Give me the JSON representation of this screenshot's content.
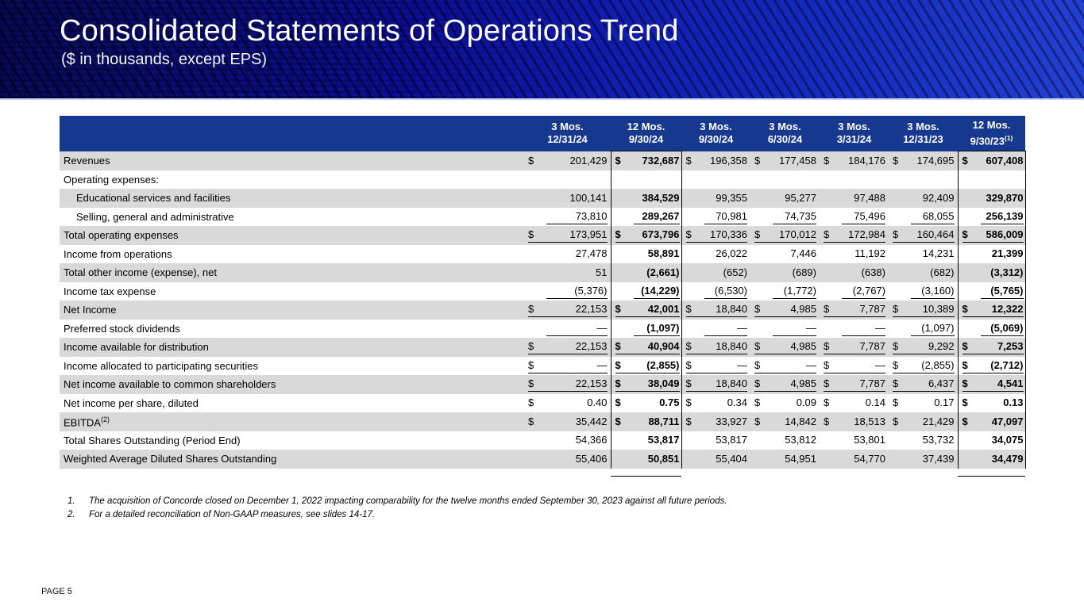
{
  "slide": {
    "title": "Consolidated Statements of Operations Trend",
    "subtitle": "($ in thousands, except EPS)",
    "page_label": "PAGE 5"
  },
  "colors": {
    "banner_blue_dark": "#05054a",
    "banner_blue_bright": "#2240d0",
    "table_header_blue": "#17388f",
    "row_stripe_gray": "#d9d9d9",
    "banner_bottom_line": "#c7d3ee"
  },
  "table": {
    "columns": [
      {
        "line1": "3 Mos.",
        "line2": "12/31/24",
        "sup": "",
        "boxed": false
      },
      {
        "line1": "12 Mos.",
        "line2": "9/30/24",
        "sup": "",
        "boxed": true
      },
      {
        "line1": "3 Mos.",
        "line2": "9/30/24",
        "sup": "",
        "boxed": false
      },
      {
        "line1": "3 Mos.",
        "line2": "6/30/24",
        "sup": "",
        "boxed": false
      },
      {
        "line1": "3 Mos.",
        "line2": "3/31/24",
        "sup": "",
        "boxed": false
      },
      {
        "line1": "3 Mos.",
        "line2": "12/31/23",
        "sup": "",
        "boxed": false
      },
      {
        "line1": "12 Mos.",
        "line2": "9/30/23",
        "sup": "(1)",
        "boxed": true
      }
    ],
    "rows": [
      {
        "label": "Revenues",
        "sup": "",
        "indent": false,
        "dollar": true,
        "underline": false,
        "values": [
          "201,429",
          "732,687",
          "196,358",
          "177,458",
          "184,176",
          "174,695",
          "607,408"
        ]
      },
      {
        "label": "Operating expenses:",
        "sup": "",
        "indent": false,
        "dollar": false,
        "underline": false,
        "values": [
          "",
          "",
          "",
          "",
          "",
          "",
          ""
        ]
      },
      {
        "label": "Educational services and facilities",
        "sup": "",
        "indent": true,
        "dollar": false,
        "underline": false,
        "values": [
          "100,141",
          "384,529",
          "99,355",
          "95,277",
          "97,488",
          "92,409",
          "329,870"
        ]
      },
      {
        "label": "Selling, general and administrative",
        "sup": "",
        "indent": true,
        "dollar": false,
        "underline": true,
        "values": [
          "73,810",
          "289,267",
          "70,981",
          "74,735",
          "75,496",
          "68,055",
          "256,139"
        ]
      },
      {
        "label": "Total operating expenses",
        "sup": "",
        "indent": false,
        "dollar": true,
        "underline": true,
        "values": [
          "173,951",
          "673,796",
          "170,336",
          "170,012",
          "172,984",
          "160,464",
          "586,009"
        ]
      },
      {
        "label": "Income from operations",
        "sup": "",
        "indent": false,
        "dollar": false,
        "underline": false,
        "values": [
          "27,478",
          "58,891",
          "26,022",
          "7,446",
          "11,192",
          "14,231",
          "21,399"
        ]
      },
      {
        "label": "Total other income (expense), net",
        "sup": "",
        "indent": false,
        "dollar": false,
        "underline": false,
        "values": [
          "51",
          "(2,661)",
          "(652)",
          "(689)",
          "(638)",
          "(682)",
          "(3,312)"
        ]
      },
      {
        "label": "Income tax expense",
        "sup": "",
        "indent": false,
        "dollar": false,
        "underline": true,
        "values": [
          "(5,376)",
          "(14,229)",
          "(6,530)",
          "(1,772)",
          "(2,767)",
          "(3,160)",
          "(5,765)"
        ]
      },
      {
        "label": "Net Income",
        "sup": "",
        "indent": false,
        "dollar": true,
        "underline": true,
        "values": [
          "22,153",
          "42,001",
          "18,840",
          "4,985",
          "7,787",
          "10,389",
          "12,322"
        ]
      },
      {
        "label": "Preferred stock dividends",
        "sup": "",
        "indent": false,
        "dollar": false,
        "underline": true,
        "values": [
          "—",
          "(1,097)",
          "—",
          "—",
          "—",
          "(1,097)",
          "(5,069)"
        ]
      },
      {
        "label": "Income available for distribution",
        "sup": "",
        "indent": false,
        "dollar": true,
        "underline": true,
        "values": [
          "22,153",
          "40,904",
          "18,840",
          "4,985",
          "7,787",
          "9,292",
          "7,253"
        ]
      },
      {
        "label": "Income allocated to participating securities",
        "sup": "",
        "indent": false,
        "dollar": true,
        "underline": true,
        "values": [
          "—",
          "(2,855)",
          "—",
          "—",
          "—",
          "(2,855)",
          "(2,712)"
        ]
      },
      {
        "label": "Net income available to common shareholders",
        "sup": "",
        "indent": false,
        "dollar": true,
        "underline": true,
        "values": [
          "22,153",
          "38,049",
          "18,840",
          "4,985",
          "7,787",
          "6,437",
          "4,541"
        ]
      },
      {
        "label": "Net income per share, diluted",
        "sup": "",
        "indent": false,
        "dollar": true,
        "underline": false,
        "values": [
          "0.40",
          "0.75",
          "0.34",
          "0.09",
          "0.14",
          "0.17",
          "0.13"
        ]
      },
      {
        "label": "EBITDA",
        "sup": "(2)",
        "indent": false,
        "dollar": true,
        "underline": false,
        "values": [
          "35,442",
          "88,711",
          "33,927",
          "14,842",
          "18,513",
          "21,429",
          "47,097"
        ]
      },
      {
        "label": "Total Shares Outstanding (Period End)",
        "sup": "",
        "indent": false,
        "dollar": false,
        "underline": false,
        "values": [
          "54,366",
          "53,817",
          "53,817",
          "53,812",
          "53,801",
          "53,732",
          "34,075"
        ]
      },
      {
        "label": "Weighted Average Diluted Shares Outstanding",
        "sup": "",
        "indent": false,
        "dollar": false,
        "underline": false,
        "values": [
          "55,406",
          "50,851",
          "55,404",
          "54,951",
          "54,770",
          "37,439",
          "34,479"
        ]
      }
    ]
  },
  "footnotes": [
    {
      "marker": "1.",
      "text": "The acquisition of Concorde closed on December 1, 2022 impacting comparability for the twelve months ended September 30, 2023 against all future periods."
    },
    {
      "marker": "2.",
      "text": "For a detailed reconciliation of Non-GAAP measures, see slides 14-17."
    }
  ]
}
